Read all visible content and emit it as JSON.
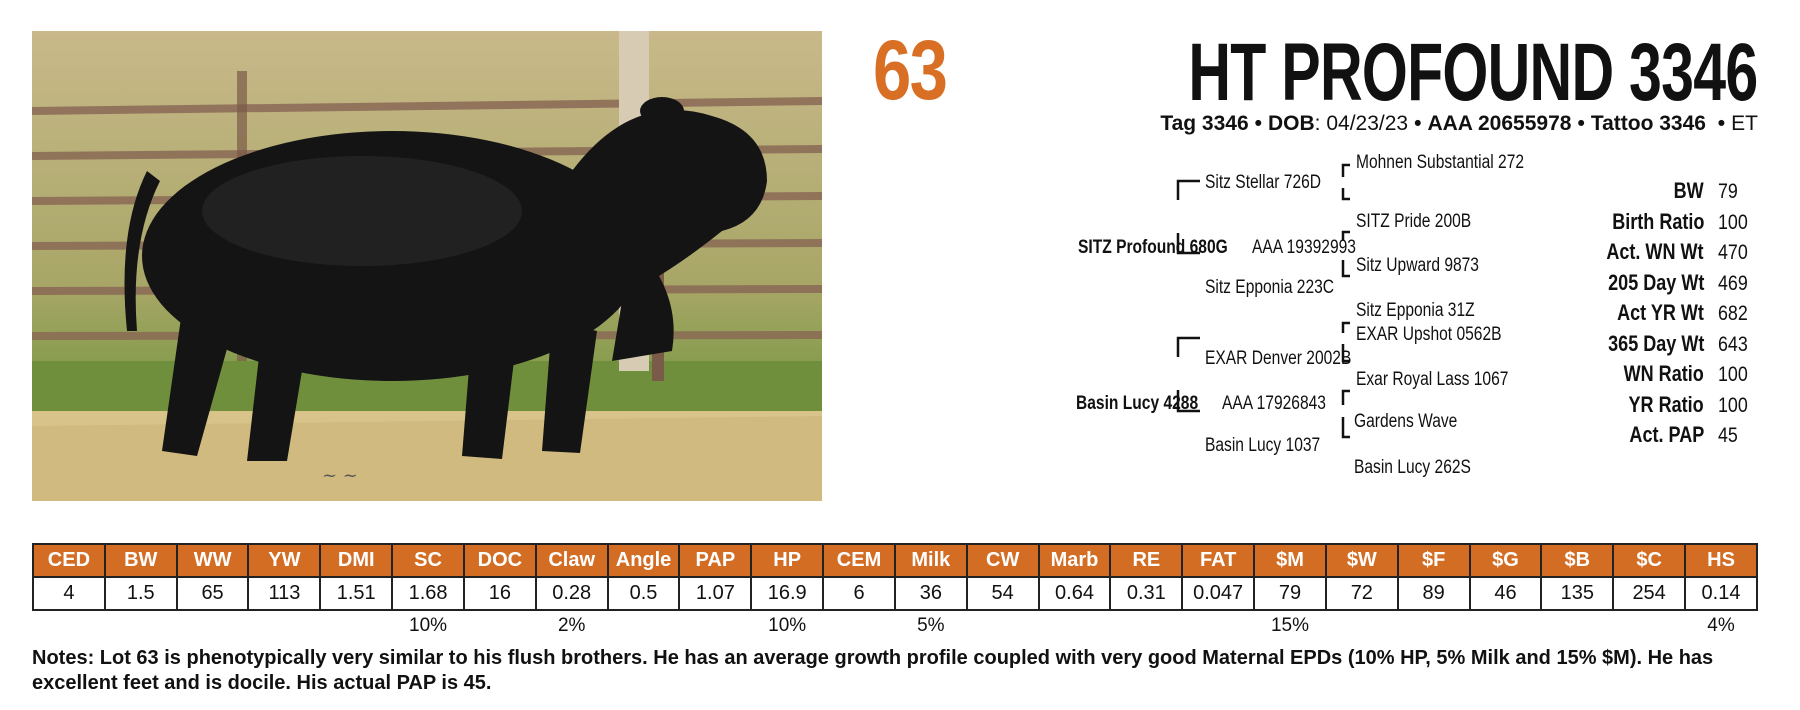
{
  "lot_number": "63",
  "animal_name": "HT PROFOUND 3346",
  "subline": {
    "tag": "Tag 3346",
    "dob_label": "DOB",
    "dob_value": ": 04/23/23",
    "aaa": "AAA 20655978",
    "tattoo": "Tattoo 3346",
    "et": "ET"
  },
  "pedigree": {
    "sire": {
      "name": "SITZ Profound 680G",
      "reg": "AAA 19392993"
    },
    "sire_sire": "Sitz Stellar 726D",
    "sire_sire_sire": "Mohnen Substantial 272",
    "sire_sire_dam": "SITZ Pride 200B",
    "sire_dam": "Sitz Epponia 223C",
    "sire_dam_sire": "Sitz Upward 9873",
    "sire_dam_dam": "Sitz Epponia 31Z",
    "dam": {
      "name": "Basin Lucy 4288",
      "reg": "AAA 17926843"
    },
    "dam_sire": "EXAR Denver 2002B",
    "dam_sire_sire": "EXAR Upshot 0562B",
    "dam_sire_dam": "Exar Royal Lass 1067",
    "dam_dam": "Basin Lucy 1037",
    "dam_dam_sire": "Gardens Wave",
    "dam_dam_dam": "Basin Lucy 262S"
  },
  "performance": [
    {
      "label": "BW",
      "value": "79"
    },
    {
      "label": "Birth Ratio",
      "value": "100"
    },
    {
      "label": "Act. WN Wt",
      "value": "470"
    },
    {
      "label": "205 Day Wt",
      "value": "469"
    },
    {
      "label": "Act YR Wt",
      "value": "682"
    },
    {
      "label": "365 Day Wt",
      "value": "643"
    },
    {
      "label": "WN Ratio",
      "value": "100"
    },
    {
      "label": "YR Ratio",
      "value": "100"
    },
    {
      "label": "Act. PAP",
      "value": "45"
    }
  ],
  "epd": {
    "headers": [
      "CED",
      "BW",
      "WW",
      "YW",
      "DMI",
      "SC",
      "DOC",
      "Claw",
      "Angle",
      "PAP",
      "HP",
      "CEM",
      "Milk",
      "CW",
      "Marb",
      "RE",
      "FAT",
      "$M",
      "$W",
      "$F",
      "$G",
      "$B",
      "$C",
      "HS"
    ],
    "values": [
      "4",
      "1.5",
      "65",
      "113",
      "1.51",
      "1.68",
      "16",
      "0.28",
      "0.5",
      "1.07",
      "16.9",
      "6",
      "36",
      "54",
      "0.64",
      "0.31",
      "0.047",
      "79",
      "72",
      "89",
      "46",
      "135",
      "254",
      "0.14"
    ],
    "percentiles": [
      "",
      "",
      "",
      "",
      "",
      "10%",
      "",
      "2%",
      "",
      "",
      "10%",
      "",
      "5%",
      "",
      "",
      "",
      "",
      "15%",
      "",
      "",
      "",
      "",
      "",
      "4%"
    ]
  },
  "notes": "Notes: Lot 63 is phenotypically very similar to his flush brothers. He has an average growth profile coupled with very good Maternal EPDs (10% HP, 5% Milk and 15% $M). He has excellent feet and is docile. His actual PAP is 45.",
  "colors": {
    "accent": "#d46d24",
    "text": "#111111"
  }
}
